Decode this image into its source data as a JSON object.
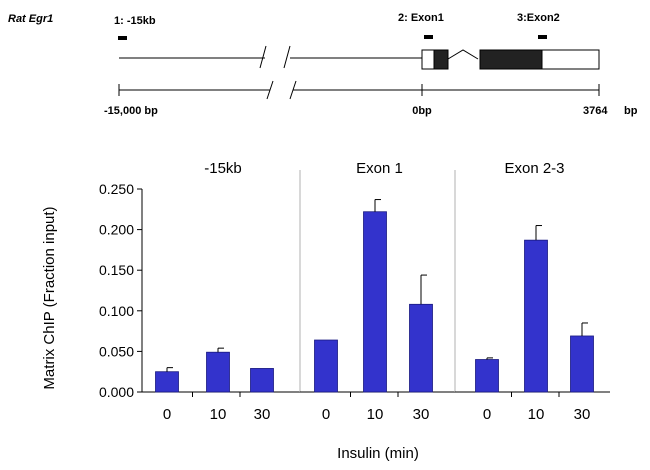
{
  "gene_map": {
    "gene_label": "Rat Egr1",
    "probes": [
      {
        "label": "1: -15kb"
      },
      {
        "label": "2: Exon1"
      },
      {
        "label": "3:Exon2"
      }
    ],
    "scale": {
      "start": "-15,000  bp",
      "zero": "0bp",
      "end": "3764",
      "unit": "bp"
    }
  },
  "chart_data": {
    "type": "bar",
    "ylabel": "Matrix ChIP (Fraction input)",
    "xlabel": "Insulin (min)",
    "ylim": [
      0,
      0.25
    ],
    "yticks": [
      "0.000",
      "0.050",
      "0.100",
      "0.150",
      "0.200",
      "0.250"
    ],
    "categories": [
      "0",
      "10",
      "30"
    ],
    "bar_color": "#3333cc",
    "panels": [
      {
        "title": "-15kb",
        "values": [
          0.025,
          0.049,
          0.029
        ],
        "errors": [
          0.005,
          0.005,
          0.0
        ]
      },
      {
        "title": "Exon 1",
        "values": [
          0.064,
          0.222,
          0.108
        ],
        "errors": [
          0.0,
          0.015,
          0.036
        ]
      },
      {
        "title": "Exon 2-3",
        "values": [
          0.04,
          0.187,
          0.069
        ],
        "errors": [
          0.002,
          0.018,
          0.016
        ]
      }
    ]
  }
}
